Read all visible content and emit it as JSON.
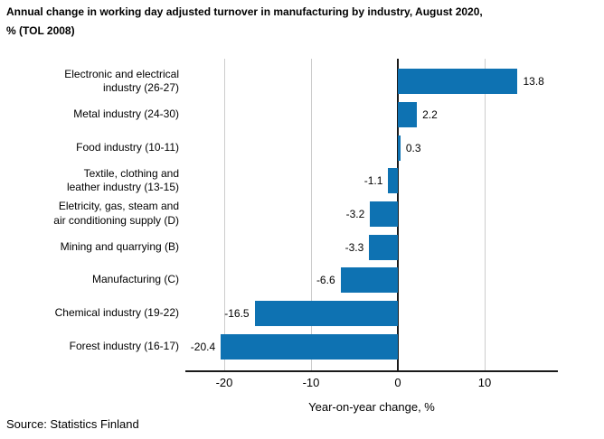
{
  "title": {
    "line1": "Annual change in working day adjusted turnover in manufacturing by industry, August 2020,",
    "line2": "% (TOL 2008)"
  },
  "footer": {
    "source": "Source: Statistics Finland"
  },
  "chart_data": {
    "type": "bar",
    "orientation": "horizontal",
    "title": "Annual change in working day adjusted turnover in manufacturing by industry, August 2020, % (TOL 2008)",
    "categories": [
      "Electronic and electrical\nindustry (26-27)",
      "Metal industry (24-30)",
      "Food industry (10-11)",
      "Textile, clothing and\nleather industry (13-15)",
      "Eletricity, gas, steam and\nair conditioning supply (D)",
      "Mining and quarrying (B)",
      "Manufacturing (C)",
      "Chemical industry (19-22)",
      "Forest industry (16-17)"
    ],
    "values": [
      13.8,
      2.2,
      0.3,
      -1.1,
      -3.2,
      -3.3,
      -6.6,
      -16.5,
      -20.4
    ],
    "value_labels": [
      "13.8",
      "2.2",
      "0.3",
      "-1.1",
      "-3.2",
      "-3.3",
      "-6.6",
      "-16.5",
      "-20.4"
    ],
    "xlabel": "Year-on-year change, %",
    "ylabel": "",
    "xticks": [
      -20,
      -10,
      0,
      10
    ],
    "xtick_labels": [
      "-20",
      "-10",
      "0",
      "10"
    ],
    "xlim": [
      -24.5,
      18.4
    ],
    "grid": true,
    "legend_position": "none",
    "colors": {
      "bar": "#0e72b2",
      "grid": "#cccccc",
      "zero_line": "#1a1a1a",
      "axis": "#1a1a1a",
      "text": "#000000"
    }
  }
}
